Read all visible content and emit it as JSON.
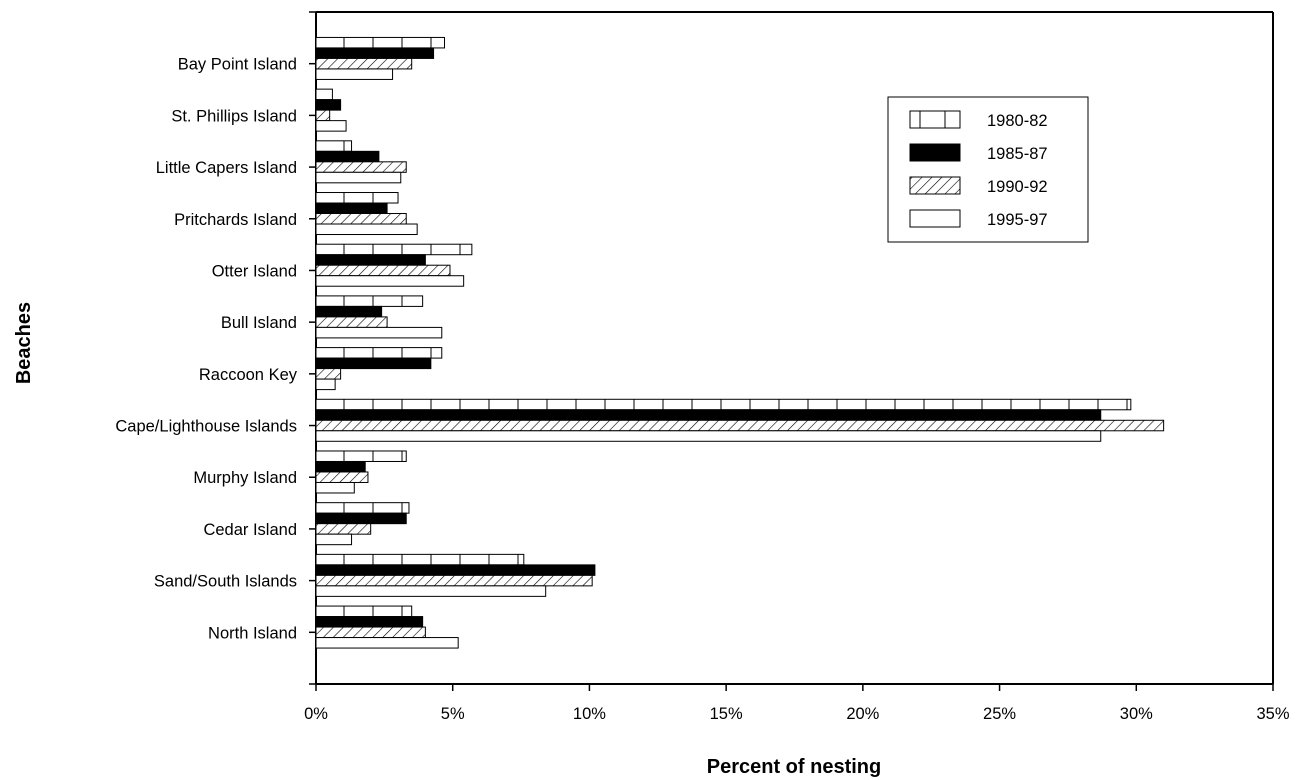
{
  "chart_data": {
    "type": "bar",
    "orientation": "horizontal",
    "title": "",
    "xlabel": "Percent of nesting",
    "ylabel": "Beaches",
    "xlim": [
      0,
      35
    ],
    "xticks": [
      0,
      5,
      10,
      15,
      20,
      25,
      30,
      35
    ],
    "xtick_labels": [
      "0%",
      "5%",
      "10%",
      "15%",
      "20%",
      "25%",
      "30%",
      "35%"
    ],
    "grid": false,
    "legend_position": "top-right",
    "categories": [
      "Bay Point Island",
      "St. Phillips Island",
      "Little Capers Island",
      "Pritchards Island",
      "Otter Island",
      "Bull Island",
      "Raccoon Key",
      "Cape/Lighthouse Islands",
      "Murphy Island",
      "Cedar Island",
      "Sand/South Islands",
      "North Island"
    ],
    "series": [
      {
        "name": "1980-82",
        "pattern": "vertical-lines",
        "values": [
          4.7,
          0.6,
          1.3,
          3.0,
          5.7,
          3.9,
          4.6,
          29.8,
          3.3,
          3.4,
          7.6,
          3.5
        ]
      },
      {
        "name": "1985-87",
        "pattern": "solid-black",
        "values": [
          4.3,
          0.9,
          2.3,
          2.6,
          4.0,
          2.4,
          4.2,
          28.7,
          1.8,
          3.3,
          10.2,
          3.9
        ]
      },
      {
        "name": "1990-92",
        "pattern": "diagonal-hatch",
        "values": [
          3.5,
          0.5,
          3.3,
          3.3,
          4.9,
          2.6,
          0.9,
          31.0,
          1.9,
          2.0,
          10.1,
          4.0
        ]
      },
      {
        "name": "1995-97",
        "pattern": "empty",
        "values": [
          2.8,
          1.1,
          3.1,
          3.7,
          5.4,
          4.6,
          0.7,
          28.7,
          1.4,
          1.3,
          8.4,
          5.2
        ]
      }
    ]
  }
}
